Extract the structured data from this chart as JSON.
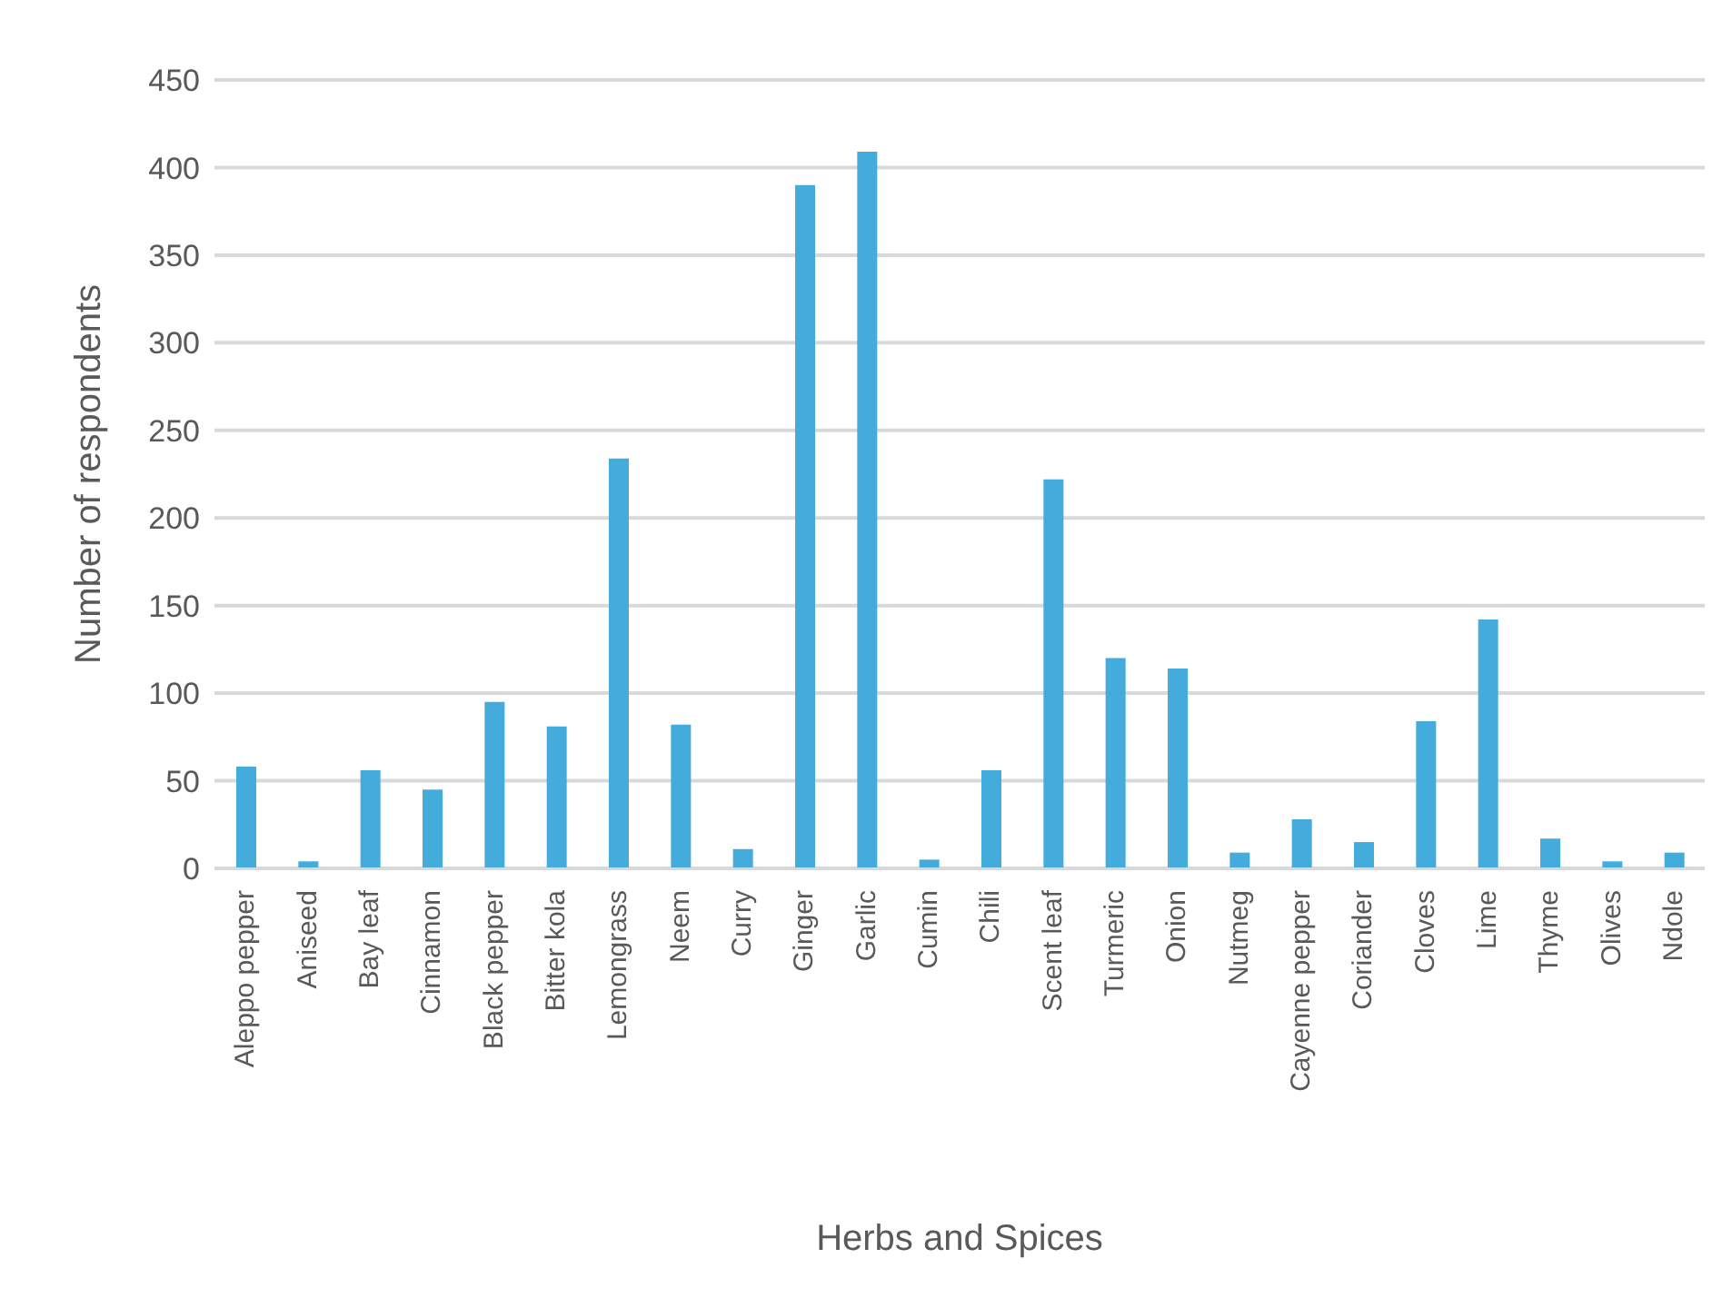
{
  "chart_data": {
    "type": "bar",
    "xlabel": "Herbs and Spices",
    "ylabel": "Number of respondents",
    "categories": [
      "Aleppo pepper",
      "Aniseed",
      "Bay leaf",
      "Cinnamon",
      "Black pepper",
      "Bitter kola",
      "Lemongrass",
      "Neem",
      "Curry",
      "Ginger",
      "Garlic",
      "Cumin",
      "Chili",
      "Scent leaf",
      "Turmeric",
      "Onion",
      "Nutmeg",
      "Cayenne pepper",
      "Coriander",
      "Cloves",
      "Lime",
      "Thyme",
      "Olives",
      "Ndole"
    ],
    "values": [
      58,
      4,
      56,
      45,
      95,
      81,
      234,
      82,
      11,
      390,
      409,
      5,
      56,
      222,
      120,
      114,
      9,
      28,
      15,
      84,
      142,
      17,
      4,
      9
    ],
    "color": "#44acdc",
    "ylim": [
      0,
      450
    ],
    "yticks": [
      0,
      50,
      100,
      150,
      200,
      250,
      300,
      350,
      400,
      450
    ],
    "grid": "y"
  }
}
